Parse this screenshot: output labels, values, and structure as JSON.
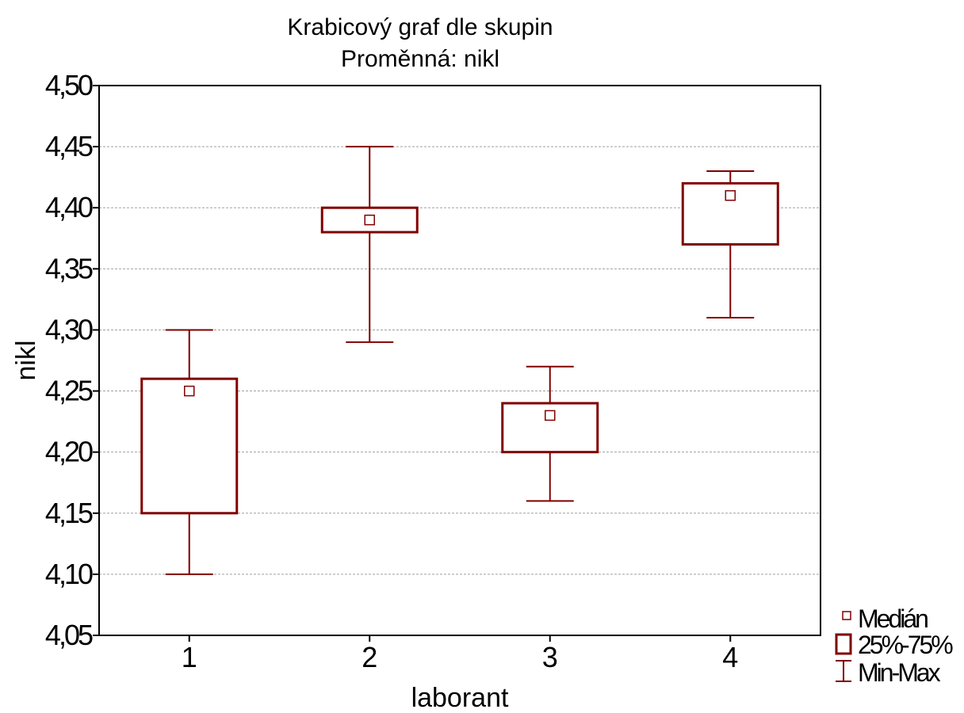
{
  "colors": {
    "series": "#800000",
    "grid": "#a0a0a0",
    "axis": "#000000",
    "background": "#ffffff"
  },
  "chart_data": {
    "type": "box",
    "title": "Krabicový graf dle skupin",
    "subtitle": "Proměnná: nikl",
    "xlabel": "laborant",
    "ylabel": "nikl",
    "ylim": [
      4.05,
      4.5
    ],
    "yticks": [
      "4,05",
      "4,10",
      "4,15",
      "4,20",
      "4,25",
      "4,30",
      "4,35",
      "4,40",
      "4,45",
      "4,50"
    ],
    "ytick_values": [
      4.05,
      4.1,
      4.15,
      4.2,
      4.25,
      4.3,
      4.35,
      4.4,
      4.45,
      4.5
    ],
    "categories": [
      "1",
      "2",
      "3",
      "4"
    ],
    "grid": "horizontal-dashed",
    "legend_position": "bottom-right",
    "boxes": [
      {
        "category": "1",
        "min": 4.1,
        "q1": 4.15,
        "median": 4.25,
        "q3": 4.26,
        "max": 4.3
      },
      {
        "category": "2",
        "min": 4.29,
        "q1": 4.38,
        "median": 4.39,
        "q3": 4.4,
        "max": 4.45
      },
      {
        "category": "3",
        "min": 4.16,
        "q1": 4.2,
        "median": 4.23,
        "q3": 4.24,
        "max": 4.27
      },
      {
        "category": "4",
        "min": 4.31,
        "q1": 4.37,
        "median": 4.41,
        "q3": 4.42,
        "max": 4.43
      }
    ],
    "legend": [
      {
        "symbol": "median-square",
        "label": "Medián"
      },
      {
        "symbol": "box",
        "label": "25%-75%"
      },
      {
        "symbol": "whisker",
        "label": "Min-Max"
      }
    ]
  }
}
